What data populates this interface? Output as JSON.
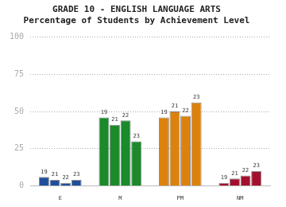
{
  "chart_data": {
    "type": "bar",
    "title": "GRADE 10 - ENGLISH LANGUAGE ARTS",
    "subtitle": "Percentage of Students by Achievement Level",
    "categories": [
      "E",
      "M",
      "PM",
      "NM"
    ],
    "colors": [
      "#1f4e9a",
      "#1a8a2a",
      "#dc820c",
      "#a3102e"
    ],
    "series": [
      {
        "name": "19",
        "values": [
          6,
          46,
          46,
          2
        ]
      },
      {
        "name": "21",
        "values": [
          4,
          41,
          50,
          5
        ]
      },
      {
        "name": "22",
        "values": [
          2,
          44,
          47,
          7
        ]
      },
      {
        "name": "23",
        "values": [
          4,
          30,
          56,
          10
        ]
      }
    ],
    "ylim": [
      0,
      100
    ],
    "yticks": [
      0,
      25,
      50,
      75,
      100
    ],
    "grid": true
  }
}
